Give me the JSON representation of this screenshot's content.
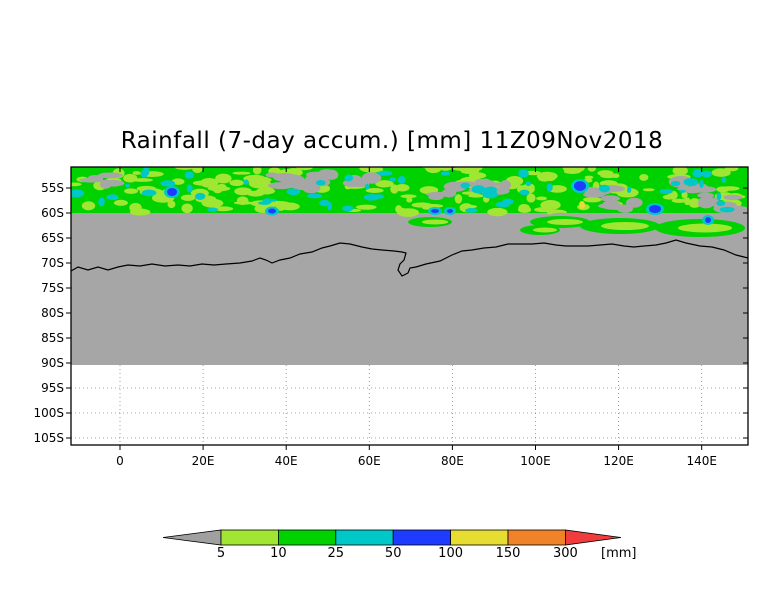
{
  "title": "Rainfall (7-day accum.) [mm] 11Z09Nov2018",
  "lat_ticks": [
    "55S",
    "60S",
    "65S",
    "70S",
    "75S",
    "80S",
    "85S",
    "90S",
    "95S",
    "100S",
    "105S"
  ],
  "lon_ticks": [
    "0",
    "20E",
    "40E",
    "60E",
    "80E",
    "100E",
    "120E",
    "140E"
  ],
  "colorbar": {
    "unit": "[mm]",
    "below_color": "#a0a0a0",
    "above_color": "#f03c3c",
    "bins": [
      {
        "label": "5",
        "color": "#a0e632"
      },
      {
        "label": "10",
        "color": "#00d200"
      },
      {
        "label": "25",
        "color": "#00c8c8"
      },
      {
        "label": "50",
        "color": "#1e3cff"
      },
      {
        "label": "100",
        "color": "#e6dc32"
      },
      {
        "label": "150",
        "color": "#f08228"
      }
    ],
    "last_label": "300"
  },
  "colors": {
    "land_mask": "#a6a6a6",
    "coastline": "#000000",
    "rain_light": "#a0e632",
    "rain_moderate": "#00d200",
    "rain_heavy": "#00c8c8",
    "rain_very_heavy": "#1e3cff",
    "rain_extreme": "#e6dc32"
  }
}
